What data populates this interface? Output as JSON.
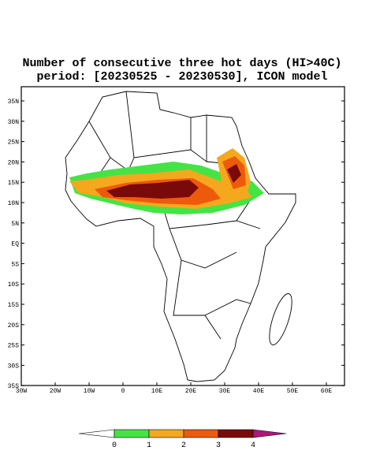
{
  "title": {
    "line1": "Number of consecutive three hot days (HI>40C)",
    "line2": "period: [20230525 - 20230530], ICON model"
  },
  "map": {
    "lat_ticks": [
      "35N",
      "30N",
      "25N",
      "20N",
      "15N",
      "10N",
      "5N",
      "EQ",
      "5S",
      "10S",
      "15S",
      "20S",
      "25S",
      "30S",
      "35S"
    ],
    "lon_ticks": [
      "30W",
      "20W",
      "10W",
      "0",
      "10E",
      "20E",
      "30E",
      "40E",
      "50E",
      "60E"
    ]
  },
  "colorbar": {
    "labels": [
      "0",
      "1",
      "2",
      "3",
      "4"
    ],
    "colors": [
      "#ffffff",
      "#44e444",
      "#f5a81e",
      "#ee5a0c",
      "#7a0a0a",
      "#b0157a"
    ]
  }
}
